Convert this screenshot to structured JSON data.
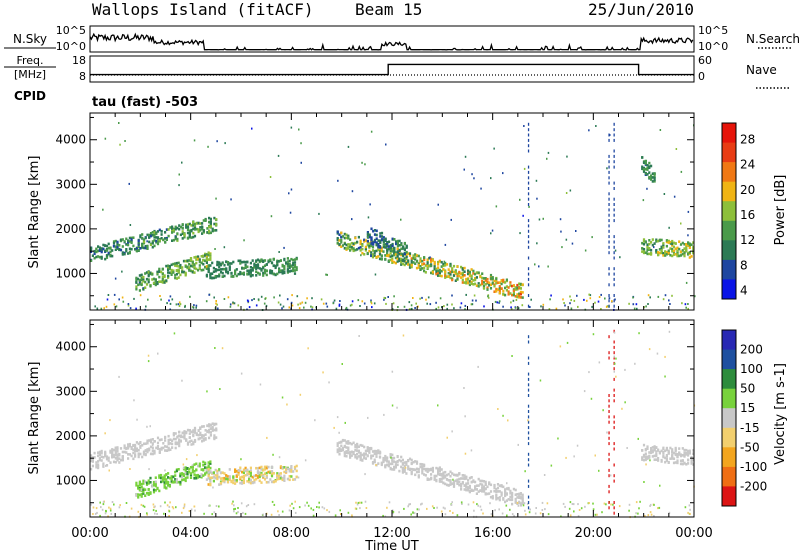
{
  "header": {
    "station": "Wallops Island (fitACF)",
    "beam": "Beam 15",
    "date": "25/Jun/2010"
  },
  "noise_panel": {
    "left_label": "N.Sky",
    "left_ticks": [
      "10^5",
      "10^0"
    ],
    "right_ticks": [
      "10^5",
      "10^0"
    ],
    "right_label": "N.Search"
  },
  "freq_panel": {
    "left_label_1": "Freq.",
    "left_label_2": "[MHz]",
    "left_ticks": [
      "18",
      "8"
    ],
    "right_ticks": [
      "60",
      "0"
    ],
    "right_label": "Nave",
    "cpid_label": "CPID",
    "program": "tau (fast) -503"
  },
  "time_axis": {
    "ticks": [
      "00:00",
      "04:00",
      "08:00",
      "12:00",
      "16:00",
      "20:00",
      "00:00"
    ],
    "label": "Time UT"
  },
  "colors": {
    "power": [
      "#0a14e6",
      "#1e46a0",
      "#2c7a55",
      "#4a9a4a",
      "#8dbf3a",
      "#f0b414",
      "#f07814",
      "#e83c14",
      "#e6140a"
    ],
    "velocity": [
      "#dc1414",
      "#ef6e14",
      "#f3a51e",
      "#f2cf6e",
      "#c8c8c8",
      "#78d23c",
      "#2d8c3c",
      "#1e50a0",
      "#2828b4"
    ]
  },
  "chart_data": [
    {
      "type": "line",
      "name": "noise",
      "x_range": [
        0,
        24
      ],
      "segments": [
        {
          "x": [
            0.0,
            2.5
          ],
          "level": 0.72
        },
        {
          "x": [
            2.5,
            4.5
          ],
          "level": 0.45
        },
        {
          "x": [
            11.6,
            12.6
          ],
          "level": 0.35
        },
        {
          "x": [
            21.9,
            24.0
          ],
          "level": 0.55
        }
      ]
    },
    {
      "type": "line",
      "name": "frequency",
      "ylabel": "Freq. [MHz]",
      "y_ticks": [
        18,
        8
      ],
      "y2_ticks": [
        60,
        0
      ],
      "points": [
        {
          "x": 0.0,
          "y": 10.0
        },
        {
          "x": 11.85,
          "y": 10.0
        },
        {
          "x": 11.85,
          "y": 15.5
        },
        {
          "x": 21.8,
          "y": 15.5
        },
        {
          "x": 21.8,
          "y": 10.0
        },
        {
          "x": 24.0,
          "y": 10.0
        }
      ]
    },
    {
      "type": "heatmap",
      "name": "power",
      "ylabel": "Slant Range [km]",
      "cbar_label": "Power [dB]",
      "cbar_ticks": [
        28,
        24,
        20,
        16,
        12,
        8,
        4
      ],
      "x_ticks": [
        "00:00",
        "04:00",
        "08:00",
        "12:00",
        "16:00",
        "20:00",
        "00:00"
      ],
      "y_ticks": [
        1000,
        2000,
        3000,
        4000
      ],
      "x_range": [
        0,
        24
      ],
      "y_range": [
        180,
        4600
      ],
      "patches": [
        {
          "x": [
            0.0,
            5.0
          ],
          "y0": 1450,
          "y1": 2150,
          "t0": 5,
          "t1": 16
        },
        {
          "x": [
            1.8,
            4.8
          ],
          "y0": 800,
          "y1": 1350,
          "t0": 7,
          "t1": 18
        },
        {
          "x": [
            4.6,
            8.2
          ],
          "y0": 1100,
          "y1": 1200,
          "t0": 8,
          "t1": 12
        },
        {
          "x": [
            9.8,
            17.2
          ],
          "y0": 1800,
          "y1": 600,
          "t0": 6,
          "t1": 24
        },
        {
          "x": [
            11.0,
            12.6
          ],
          "y0": 1900,
          "y1": 1500,
          "t0": 5,
          "t1": 12
        },
        {
          "x": [
            21.9,
            24.0
          ],
          "y0": 1650,
          "y1": 1550,
          "t0": 8,
          "t1": 20
        },
        {
          "x": [
            21.9,
            22.4
          ],
          "y0": 3500,
          "y1": 3200,
          "t0": 6,
          "t1": 14
        }
      ]
    },
    {
      "type": "heatmap",
      "name": "velocity",
      "ylabel": "Slant Range [km]",
      "cbar_label": "Velocity [m s-1]",
      "cbar_ticks": [
        200,
        100,
        50,
        15,
        -15,
        -50,
        -100,
        -200
      ],
      "x_ticks": [
        "00:00",
        "04:00",
        "08:00",
        "12:00",
        "16:00",
        "20:00",
        "00:00"
      ],
      "y_ticks": [
        1000,
        2000,
        3000,
        4000
      ],
      "x_range": [
        0,
        24
      ],
      "y_range": [
        180,
        4600
      ],
      "patches": [
        {
          "x": [
            0.0,
            5.0
          ],
          "y0": 1450,
          "y1": 2150,
          "v0": -10,
          "v1": 10
        },
        {
          "x": [
            1.8,
            4.8
          ],
          "y0": 800,
          "y1": 1350,
          "v0": 10,
          "v1": 60
        },
        {
          "x": [
            4.6,
            8.2
          ],
          "y0": 1100,
          "y1": 1200,
          "v0": -60,
          "v1": 30
        },
        {
          "x": [
            9.8,
            17.2
          ],
          "y0": 1800,
          "y1": 600,
          "v0": -10,
          "v1": 10
        },
        {
          "x": [
            21.9,
            24.0
          ],
          "y0": 1650,
          "y1": 1550,
          "v0": -10,
          "v1": 10
        }
      ]
    }
  ]
}
